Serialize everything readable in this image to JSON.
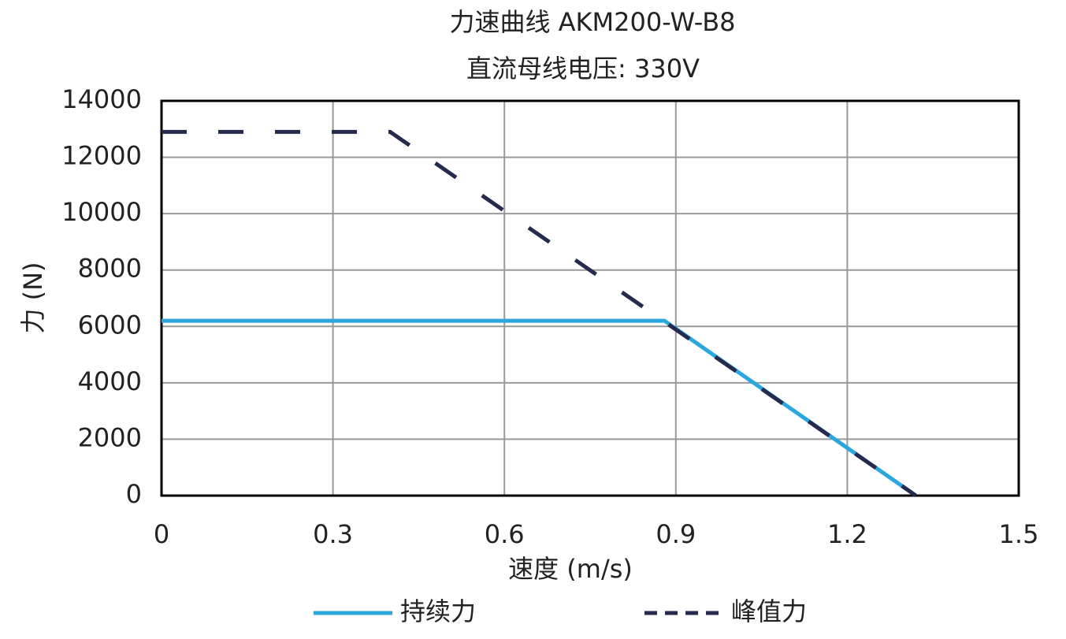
{
  "chart_data": {
    "type": "line",
    "title": "力速曲线 AKM200-W-B8",
    "subtitle": "直流母线电压: 330V",
    "x_label": "速度 (m/s)",
    "y_label": "力 (N)",
    "xlim": [
      0,
      1.5
    ],
    "xticks": [
      0,
      0.3,
      0.6,
      0.9,
      1.2,
      1.5
    ],
    "ylim": [
      0,
      14000
    ],
    "yticks": [
      0,
      2000,
      4000,
      6000,
      8000,
      10000,
      12000,
      14000
    ],
    "grid": true,
    "legend": "bottom",
    "series": [
      {
        "name": "持续力",
        "color": "#2aa8de",
        "linestyle": "solid",
        "x": [
          0,
          0.88,
          1.32
        ],
        "values": [
          6200,
          6200,
          0
        ]
      },
      {
        "name": "峰值力",
        "color": "#252a4e",
        "linestyle": "dashed",
        "x": [
          0,
          0.4,
          1.32
        ],
        "values": [
          12900,
          12900,
          0
        ]
      }
    ]
  }
}
